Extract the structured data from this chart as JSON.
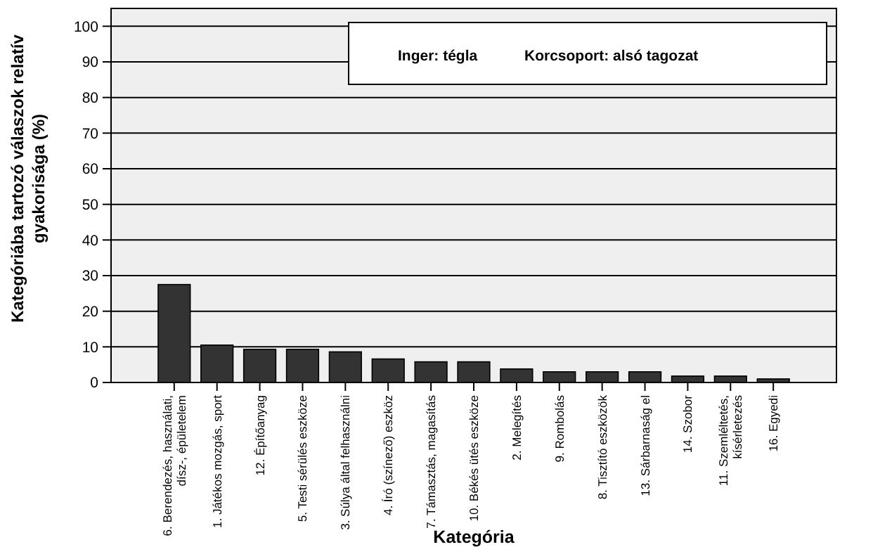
{
  "chart_data": {
    "type": "bar",
    "xlabel": "Kategória",
    "ylabel": "Kategóriába tartozó válaszok relatív\ngyakorisága (%)",
    "categories": [
      "6. Berendezés, használati,\ndísz-, épületelem",
      "1. Játékos mozgás, sport",
      "12. Építőanyag",
      "5. Testi sérülés eszköze",
      "3. Súlya által felhasználni",
      "4. Író (színező) eszköz",
      "7. Támasztás, magasítás",
      "10. Békés ütés eszköze",
      "2. Melegítés",
      "9. Rombolás",
      "8. Tisztító eszközök",
      "13. Sárbarnaság el",
      "14. Szobor",
      "11. Szemléltetés,\nkísérletezés",
      "16. Egyedi"
    ],
    "values": [
      27.5,
      10.5,
      9.3,
      9.3,
      8.6,
      6.6,
      5.8,
      5.8,
      3.8,
      3.0,
      3.0,
      3.0,
      1.8,
      1.8,
      1.0
    ],
    "color": "#333333",
    "ylim": [
      0,
      105
    ],
    "yticks": [
      0,
      10,
      20,
      30,
      40,
      50,
      60,
      70,
      80,
      90,
      100
    ],
    "grid": "y",
    "annotations": [
      "Inger: tégla",
      "Korcsoport: alsó tagozat"
    ]
  }
}
